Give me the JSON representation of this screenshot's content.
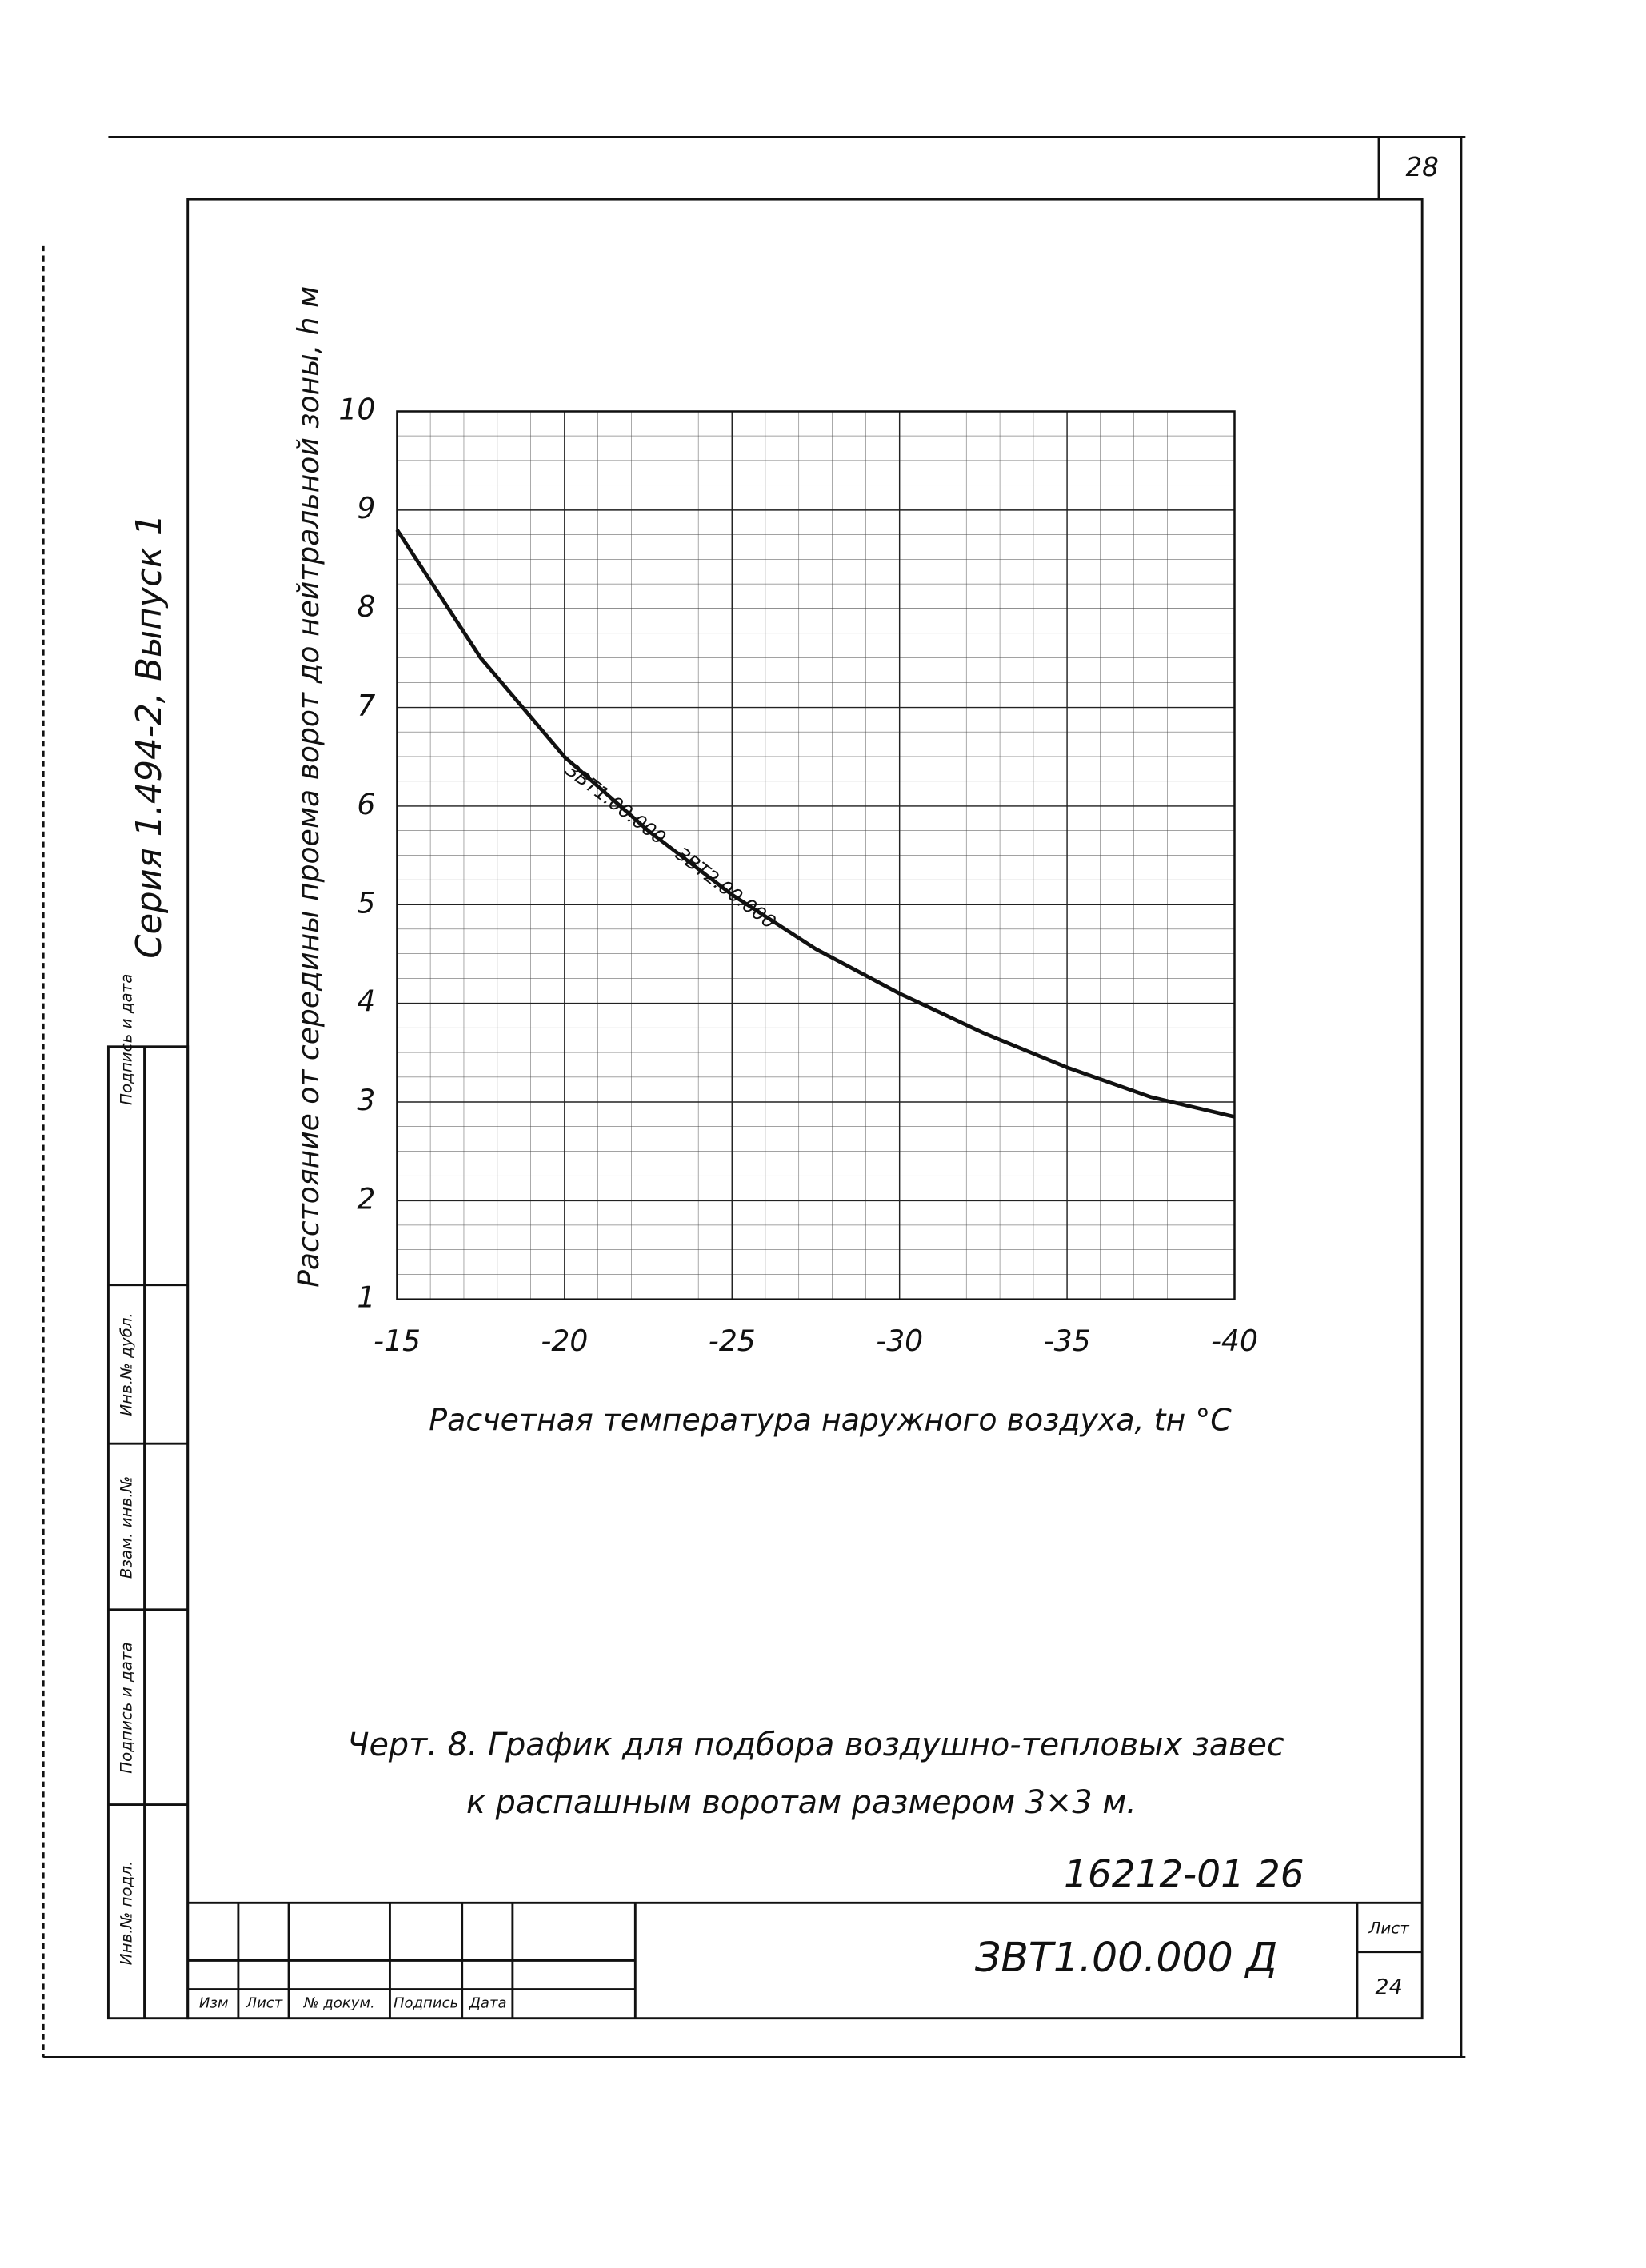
{
  "page_number": "28",
  "side_title": "Серия 1.494-2, Выпуск 1",
  "chart_data": {
    "type": "line",
    "y_label": "Расстояние от середины проема ворот до нейтральной зоны, h м",
    "x_label": "Расчетная температура наружного воздуха, tн °С",
    "x": [
      -15,
      -17.5,
      -20,
      -22.5,
      -25,
      -27.5,
      -30,
      -32.5,
      -35,
      -37.5,
      -40
    ],
    "series": [
      {
        "name": "ЗВТ1.00.000 - ЗВТ2.00.000",
        "color": "#111111",
        "values": [
          8.8,
          7.5,
          6.5,
          5.75,
          5.1,
          4.55,
          4.1,
          3.7,
          3.35,
          3.05,
          2.85
        ]
      }
    ],
    "xlim": [
      -15,
      -40
    ],
    "xticks": [
      -15,
      -20,
      -25,
      -30,
      -35,
      -40
    ],
    "ylim": [
      1,
      10
    ],
    "yticks": [
      1,
      2,
      3,
      4,
      5,
      6,
      7,
      8,
      9,
      10
    ],
    "grid": true
  },
  "caption": [
    "Черт. 8. График для подбора воздушно-тепловых завес",
    "к распашным воротам размером 3×3 м."
  ],
  "side_stamp": [
    "Инв.№ подл.",
    "Подпись и дата",
    "Взам. инв.№",
    "Инв.№ дубл.",
    "Подпись и дата"
  ],
  "stamp": {
    "code": "16212-01 26",
    "designation": "ЗВТ1.00.000 Д",
    "sheet_label": "Лист",
    "sheet": "24",
    "columns": [
      "Изм",
      "Лист",
      "№ докум.",
      "Подпись",
      "Дата"
    ]
  }
}
